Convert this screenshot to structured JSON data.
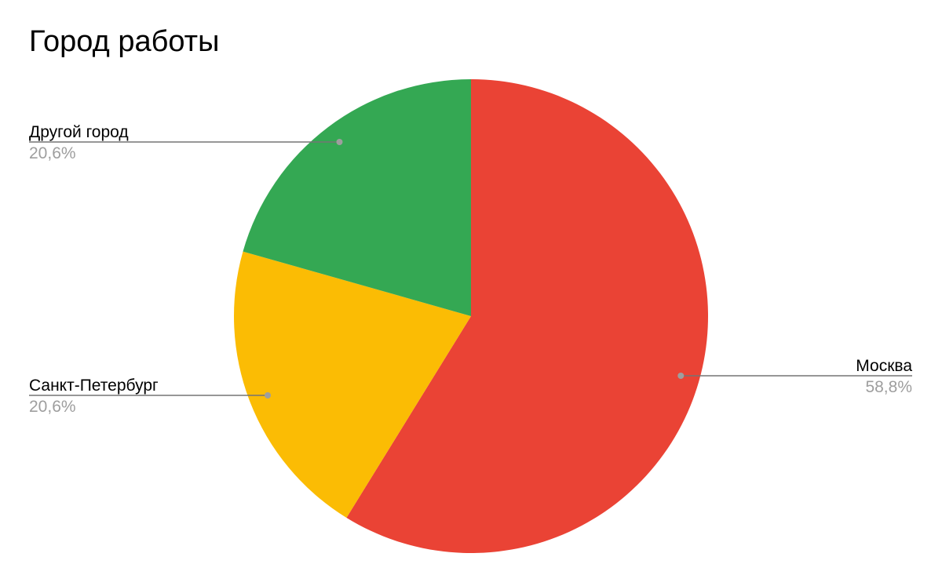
{
  "chart_data": {
    "type": "pie",
    "title": "Город работы",
    "slices": [
      {
        "label": "Москва",
        "value": 58.8,
        "display": "58,8%",
        "color": "#ea4335"
      },
      {
        "label": "Санкт-Петербург",
        "value": 20.6,
        "display": "20,6%",
        "color": "#fbbc04"
      },
      {
        "label": "Другой город",
        "value": 20.6,
        "display": "20,6%",
        "color": "#34a853"
      }
    ],
    "start_angle": "12 o'clock",
    "direction": "clockwise",
    "legend": "none",
    "data_labels": "outside with leader lines"
  }
}
